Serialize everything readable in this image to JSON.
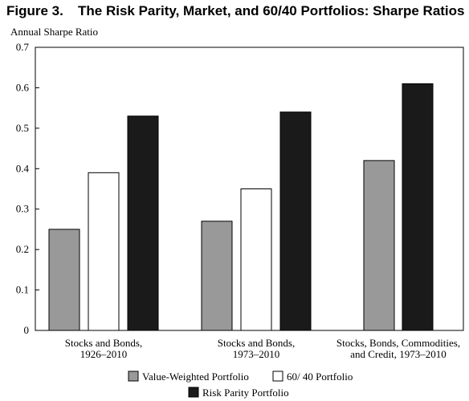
{
  "figure": {
    "label": "Figure 3.",
    "title": "The Risk Parity, Market, and 60/40 Portfolios: Sharpe Ratios"
  },
  "chart_data": {
    "type": "bar",
    "ylabel": "Annual Sharpe Ratio",
    "ylim": [
      0,
      0.7
    ],
    "yticks": [
      "0",
      "0.1",
      "0.2",
      "0.3",
      "0.4",
      "0.5",
      "0.6",
      "0.7"
    ],
    "ytick_values": [
      0,
      0.1,
      0.2,
      0.3,
      0.4,
      0.5,
      0.6,
      0.7
    ],
    "grid": false,
    "legend_position": "bottom",
    "categories": [
      [
        "Stocks and Bonds,",
        "1926–2010"
      ],
      [
        "Stocks and Bonds,",
        "1973–2010"
      ],
      [
        "Stocks, Bonds, Commodities,",
        "and Credit, 1973–2010"
      ]
    ],
    "series": [
      {
        "name": "Value-Weighted Portfolio",
        "color": "#999999",
        "values": [
          0.25,
          0.27,
          0.42
        ]
      },
      {
        "name": "60/ 40 Portfolio",
        "color": "#ffffff",
        "values": [
          0.39,
          0.35,
          null
        ]
      },
      {
        "name": "Risk Parity Portfolio",
        "color": "#1a1a1a",
        "values": [
          0.53,
          0.54,
          0.61
        ]
      }
    ]
  }
}
